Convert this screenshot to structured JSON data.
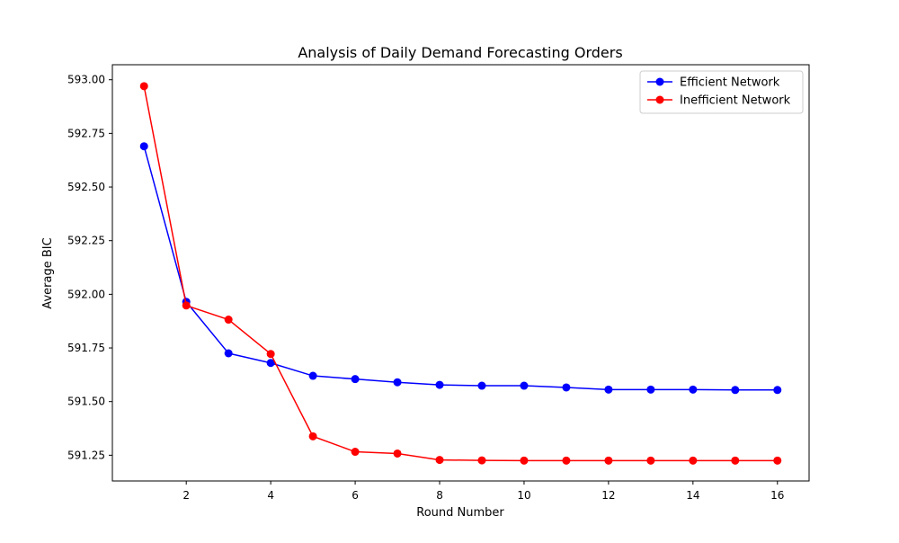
{
  "chart_data": {
    "type": "line",
    "title": "Analysis of Daily Demand Forecasting Orders",
    "xlabel": "Round Number",
    "ylabel": "Average BIC",
    "xlim": [
      0.25,
      16.75
    ],
    "ylim": [
      591.13,
      593.07
    ],
    "xticks": [
      "2",
      "4",
      "6",
      "8",
      "10",
      "12",
      "14",
      "16"
    ],
    "yticks": [
      "591.25",
      "591.50",
      "591.75",
      "592.00",
      "592.25",
      "592.50",
      "592.75",
      "593.00"
    ],
    "grid": false,
    "legend_position": "top-right",
    "x": [
      1,
      2,
      3,
      4,
      5,
      6,
      7,
      8,
      9,
      10,
      11,
      12,
      13,
      14,
      15,
      16
    ],
    "series": [
      {
        "name": "Efficient Network",
        "color": "#0000ff",
        "values": [
          592.69,
          591.965,
          591.725,
          591.68,
          591.62,
          591.605,
          591.59,
          591.578,
          591.574,
          591.574,
          591.566,
          591.556,
          591.556,
          591.556,
          591.554,
          591.554
        ]
      },
      {
        "name": "Inefficient Network",
        "color": "#ff0000",
        "values": [
          592.97,
          591.948,
          591.882,
          591.722,
          591.338,
          591.266,
          591.258,
          591.228,
          591.226,
          591.225,
          591.225,
          591.225,
          591.225,
          591.225,
          591.225,
          591.225
        ]
      }
    ]
  }
}
